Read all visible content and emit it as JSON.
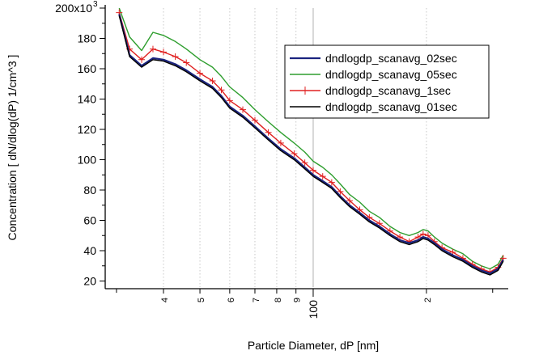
{
  "chart_data": {
    "type": "line",
    "title": "",
    "xlabel": "Particle Diameter, dP [nm]",
    "ylabel": "Concentration [ dN/dlog(dP) 1/cm^3 ]",
    "x_scale": "log",
    "xlim": [
      28.0,
      330.0
    ],
    "ylim": [
      16,
      200
    ],
    "y_ticks": [
      20,
      40,
      60,
      80,
      100,
      120,
      140,
      160,
      180
    ],
    "y_top_label": {
      "base": "200x10",
      "exponent": "3"
    },
    "x_ticks": [
      {
        "value": 40,
        "label": "4"
      },
      {
        "value": 50,
        "label": "5"
      },
      {
        "value": 60,
        "label": "6"
      },
      {
        "value": 70,
        "label": "7"
      },
      {
        "value": 80,
        "label": "8"
      },
      {
        "value": 90,
        "label": "9"
      },
      {
        "value": 100,
        "label": "100"
      },
      {
        "value": 200,
        "label": "2"
      }
    ],
    "grid": true,
    "legend_position": "right",
    "x": [
      30.5,
      32.5,
      35.0,
      37.5,
      40.0,
      43.0,
      46.0,
      50.0,
      54.0,
      57.0,
      60.0,
      65.0,
      70.0,
      76.0,
      82.0,
      89.0,
      95.0,
      100.0,
      106.0,
      112.0,
      118.0,
      125.0,
      133.0,
      141.0,
      150.0,
      160.0,
      170.0,
      180.0,
      190.0,
      196.0,
      202.0,
      210.0,
      220.0,
      235.0,
      250.0,
      265.0,
      280.0,
      295.0,
      310.0,
      320.0
    ],
    "series": [
      {
        "name": "dndlogdp_scanavg_02sec",
        "color": "#1a237e",
        "values": [
          196,
          169,
          162,
          167,
          166,
          163,
          159,
          153,
          148,
          142,
          135,
          129,
          122,
          114,
          107,
          101,
          95,
          90,
          86,
          82,
          76,
          70,
          65,
          60,
          56,
          51,
          47,
          45,
          47,
          49,
          48,
          45,
          41,
          37,
          34,
          30,
          27,
          25,
          28,
          34
        ]
      },
      {
        "name": "dndlogdp_scanavg_05sec",
        "color": "#2e9e2e",
        "values": [
          200,
          181,
          172,
          184,
          182,
          178,
          173,
          166,
          161,
          155,
          148,
          141,
          133,
          125,
          118,
          111,
          105,
          99,
          95,
          90,
          84,
          77,
          72,
          66,
          62,
          56,
          52,
          50,
          52,
          54,
          53,
          49,
          45,
          41,
          38,
          33,
          30,
          28,
          31,
          37
        ]
      },
      {
        "name": "dndlogdp_scanavg_1sec",
        "color": "#e02020",
        "values": [
          197,
          173,
          166,
          173,
          171,
          168,
          164,
          157,
          152,
          146,
          139,
          133,
          126,
          118,
          111,
          104,
          98,
          93,
          89,
          85,
          79,
          73,
          67,
          62,
          58,
          53,
          49,
          46,
          49,
          51,
          50,
          46,
          42,
          39,
          35,
          31,
          28,
          26,
          29,
          35
        ]
      },
      {
        "name": "dndlogdp_scanavg_01sec",
        "color": "#000000",
        "values": [
          195,
          168,
          161,
          166,
          165,
          162,
          158,
          152,
          147,
          141,
          134,
          128,
          121,
          113,
          106,
          100,
          94,
          89,
          85,
          81,
          75,
          69,
          64,
          59,
          55,
          50,
          46,
          44,
          46,
          48,
          47,
          44,
          40,
          36,
          33,
          29,
          26,
          24,
          27,
          33
        ]
      }
    ]
  }
}
